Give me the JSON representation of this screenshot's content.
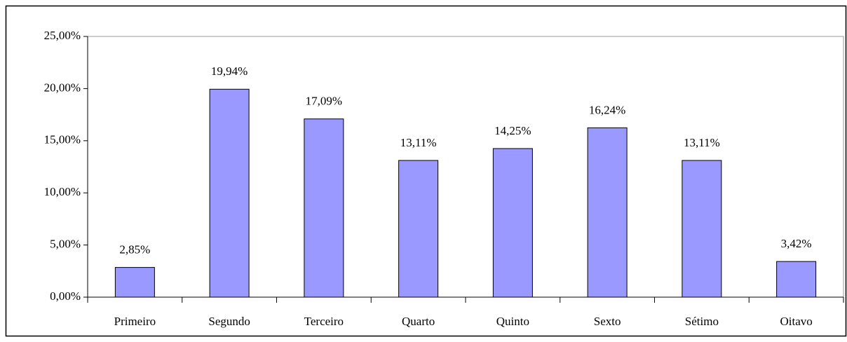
{
  "chart_data": {
    "type": "bar",
    "categories": [
      "Primeiro",
      "Segundo",
      "Terceiro",
      "Quarto",
      "Quinto",
      "Sexto",
      "Sétimo",
      "Oitavo"
    ],
    "values": [
      2.85,
      19.94,
      17.09,
      13.11,
      14.25,
      16.24,
      13.11,
      3.42
    ],
    "value_labels": [
      "2,85%",
      "19,94%",
      "17,09%",
      "13,11%",
      "14,25%",
      "16,24%",
      "13,11%",
      "3,42%"
    ],
    "color": "#9999ff",
    "ylim": [
      0,
      25
    ],
    "yticks": [
      {
        "value": 0,
        "label": "0,00%"
      },
      {
        "value": 5,
        "label": "5,00%"
      },
      {
        "value": 10,
        "label": "10,00%"
      },
      {
        "value": 15,
        "label": "15,00%"
      },
      {
        "value": 20,
        "label": "20,00%"
      },
      {
        "value": 25,
        "label": "25,00%"
      }
    ],
    "grid": false
  }
}
